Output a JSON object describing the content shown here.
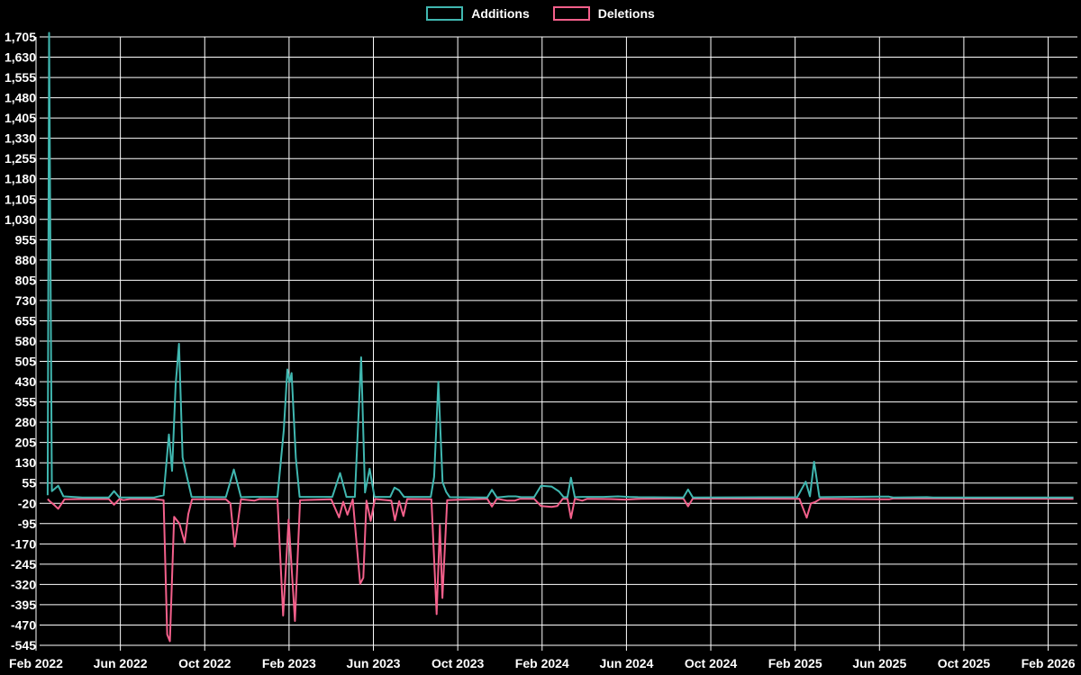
{
  "chart": {
    "background": "#000000",
    "grid_color": "#ffffff",
    "text_color": "#ffffff",
    "legend": [
      {
        "label": "Additions",
        "color": "#40b7b0"
      },
      {
        "label": "Deletions",
        "color": "#f3608b"
      }
    ]
  },
  "chart_data": {
    "type": "line",
    "title": "",
    "xlabel": "",
    "ylabel": "",
    "grid": true,
    "legend_position": "top-center",
    "x_unit": "fractional months since Feb 2022",
    "x_axis": {
      "tick_labels": [
        "Feb 2022",
        "Jun 2022",
        "Oct 2022",
        "Feb 2023",
        "Jun 2023",
        "Oct 2023",
        "Feb 2024",
        "Jun 2024",
        "Oct 2024",
        "Feb 2025",
        "Jun 2025",
        "Oct 2025",
        "Feb 2026"
      ],
      "months_per_tick": 4
    },
    "y_axis": {
      "min": -545,
      "max": 1705,
      "step": 75,
      "tick_labels": [
        "1,705",
        "1,630",
        "1,555",
        "1,480",
        "1,405",
        "1,330",
        "1,255",
        "1,180",
        "1,105",
        "1,030",
        "955",
        "880",
        "805",
        "730",
        "655",
        "580",
        "505",
        "430",
        "355",
        "280",
        "205",
        "130",
        "55",
        "-20",
        "-95",
        "-170",
        "-245",
        "-320",
        "-395",
        "-470",
        "-545"
      ]
    },
    "series": [
      {
        "name": "Additions",
        "color": "#40b7b0",
        "points": [
          [
            0.55,
            10
          ],
          [
            0.62,
            1720
          ],
          [
            0.75,
            25
          ],
          [
            1.05,
            45
          ],
          [
            1.3,
            6
          ],
          [
            2.2,
            2
          ],
          [
            3.45,
            2
          ],
          [
            3.7,
            25
          ],
          [
            3.95,
            2
          ],
          [
            5.6,
            2
          ],
          [
            6.05,
            10
          ],
          [
            6.3,
            235
          ],
          [
            6.45,
            100
          ],
          [
            6.62,
            420
          ],
          [
            6.78,
            570
          ],
          [
            6.95,
            150
          ],
          [
            7.15,
            80
          ],
          [
            7.38,
            4
          ],
          [
            9.0,
            3
          ],
          [
            9.38,
            105
          ],
          [
            9.72,
            3
          ],
          [
            10.3,
            4
          ],
          [
            11.45,
            4
          ],
          [
            11.75,
            250
          ],
          [
            11.92,
            475
          ],
          [
            12.02,
            428
          ],
          [
            12.12,
            462
          ],
          [
            12.32,
            148
          ],
          [
            12.5,
            4
          ],
          [
            14.05,
            4
          ],
          [
            14.42,
            92
          ],
          [
            14.72,
            4
          ],
          [
            15.12,
            4
          ],
          [
            15.42,
            520
          ],
          [
            15.6,
            20
          ],
          [
            15.82,
            108
          ],
          [
            16.05,
            4
          ],
          [
            16.8,
            4
          ],
          [
            17.0,
            38
          ],
          [
            17.22,
            28
          ],
          [
            17.45,
            4
          ],
          [
            18.72,
            4
          ],
          [
            18.88,
            78
          ],
          [
            19.08,
            430
          ],
          [
            19.28,
            58
          ],
          [
            19.45,
            22
          ],
          [
            19.62,
            3
          ],
          [
            21.4,
            2
          ],
          [
            21.62,
            30
          ],
          [
            21.85,
            2
          ],
          [
            22.4,
            6
          ],
          [
            22.75,
            6
          ],
          [
            23.0,
            3
          ],
          [
            23.62,
            3
          ],
          [
            23.95,
            45
          ],
          [
            24.45,
            42
          ],
          [
            24.8,
            24
          ],
          [
            25.02,
            3
          ],
          [
            25.2,
            3
          ],
          [
            25.37,
            75
          ],
          [
            25.55,
            3
          ],
          [
            25.92,
            4
          ],
          [
            26.9,
            4
          ],
          [
            27.6,
            6
          ],
          [
            28.1,
            4
          ],
          [
            28.55,
            3
          ],
          [
            30.7,
            2
          ],
          [
            30.92,
            31
          ],
          [
            31.15,
            2
          ],
          [
            36.1,
            3
          ],
          [
            36.5,
            60
          ],
          [
            36.7,
            6
          ],
          [
            36.9,
            134
          ],
          [
            37.15,
            3
          ],
          [
            40.05,
            5
          ],
          [
            40.45,
            5
          ],
          [
            40.65,
            2
          ],
          [
            42.25,
            3
          ],
          [
            42.55,
            2
          ],
          [
            49.2,
            2
          ]
        ]
      },
      {
        "name": "Deletions",
        "color": "#f3608b",
        "points": [
          [
            0.55,
            -4
          ],
          [
            0.65,
            -12
          ],
          [
            0.85,
            -25
          ],
          [
            1.05,
            -40
          ],
          [
            1.35,
            -5
          ],
          [
            2.2,
            -4
          ],
          [
            3.45,
            -4
          ],
          [
            3.7,
            -25
          ],
          [
            3.95,
            -4
          ],
          [
            4.15,
            -8
          ],
          [
            4.45,
            -4
          ],
          [
            5.6,
            -4
          ],
          [
            6.05,
            -8
          ],
          [
            6.22,
            -505
          ],
          [
            6.35,
            -530
          ],
          [
            6.55,
            -70
          ],
          [
            6.8,
            -95
          ],
          [
            7.05,
            -165
          ],
          [
            7.22,
            -60
          ],
          [
            7.4,
            -5
          ],
          [
            9.0,
            -5
          ],
          [
            9.22,
            -20
          ],
          [
            9.42,
            -180
          ],
          [
            9.72,
            -5
          ],
          [
            10.35,
            -10
          ],
          [
            10.6,
            -4
          ],
          [
            11.45,
            -5
          ],
          [
            11.72,
            -435
          ],
          [
            11.98,
            -80
          ],
          [
            12.28,
            -455
          ],
          [
            12.52,
            -8
          ],
          [
            14.0,
            -5
          ],
          [
            14.37,
            -72
          ],
          [
            14.57,
            -14
          ],
          [
            14.77,
            -62
          ],
          [
            15.02,
            -5
          ],
          [
            15.37,
            -318
          ],
          [
            15.52,
            -295
          ],
          [
            15.67,
            -10
          ],
          [
            15.87,
            -85
          ],
          [
            16.07,
            -4
          ],
          [
            16.85,
            -10
          ],
          [
            17.02,
            -83
          ],
          [
            17.22,
            -12
          ],
          [
            17.42,
            -67
          ],
          [
            17.6,
            -4
          ],
          [
            18.75,
            -5
          ],
          [
            19.0,
            -430
          ],
          [
            19.15,
            -100
          ],
          [
            19.27,
            -370
          ],
          [
            19.5,
            -8
          ],
          [
            21.4,
            -3
          ],
          [
            21.62,
            -32
          ],
          [
            21.85,
            -3
          ],
          [
            22.35,
            -10
          ],
          [
            22.7,
            -10
          ],
          [
            22.95,
            -3
          ],
          [
            23.62,
            -3
          ],
          [
            23.95,
            -30
          ],
          [
            24.45,
            -33
          ],
          [
            24.72,
            -30
          ],
          [
            24.98,
            -3
          ],
          [
            25.2,
            -3
          ],
          [
            25.37,
            -75
          ],
          [
            25.55,
            -3
          ],
          [
            25.9,
            -10
          ],
          [
            26.15,
            -3
          ],
          [
            27.25,
            -4
          ],
          [
            27.95,
            -6
          ],
          [
            28.45,
            -4
          ],
          [
            28.7,
            -3
          ],
          [
            30.7,
            -2
          ],
          [
            30.92,
            -31
          ],
          [
            31.15,
            -2
          ],
          [
            36.2,
            -3
          ],
          [
            36.55,
            -73
          ],
          [
            36.75,
            -20
          ],
          [
            36.95,
            -15
          ],
          [
            37.2,
            -3
          ],
          [
            40.05,
            -5
          ],
          [
            40.45,
            -5
          ],
          [
            40.65,
            -2
          ],
          [
            42.3,
            -2
          ],
          [
            49.2,
            -3
          ]
        ]
      }
    ]
  }
}
